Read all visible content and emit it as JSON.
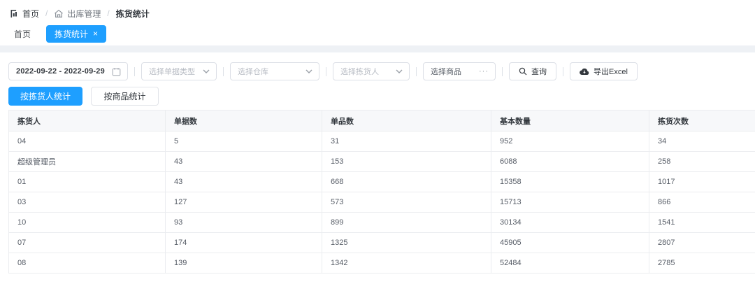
{
  "breadcrumb": {
    "separator": "/",
    "items": [
      {
        "label": "首页"
      },
      {
        "label": "出库管理"
      },
      {
        "label": "拣货统计"
      }
    ]
  },
  "tabs": {
    "home": "首页",
    "active": "拣货统计",
    "close_glyph": "×"
  },
  "filters": {
    "date_range": "2022-09-22 - 2022-09-29",
    "selects": [
      {
        "placeholder": "选择单据类型"
      },
      {
        "placeholder": "选择仓库"
      },
      {
        "placeholder": "选择拣货人"
      },
      {
        "placeholder": "选择商品",
        "suffix": "···"
      }
    ],
    "search_label": "查询",
    "export_label": "导出Excel"
  },
  "view_toggle": {
    "by_picker": "按拣货人统计",
    "by_product": "按商品统计"
  },
  "table": {
    "columns": [
      "拣货人",
      "单据数",
      "单品数",
      "基本数量",
      "拣货次数"
    ],
    "rows": [
      [
        "04",
        "5",
        "31",
        "952",
        "34"
      ],
      [
        "超级管理员",
        "43",
        "153",
        "6088",
        "258"
      ],
      [
        "01",
        "43",
        "668",
        "15358",
        "1017"
      ],
      [
        "03",
        "127",
        "573",
        "15713",
        "866"
      ],
      [
        "10",
        "93",
        "899",
        "30134",
        "1541"
      ],
      [
        "07",
        "174",
        "1325",
        "45905",
        "2807"
      ],
      [
        "08",
        "139",
        "1342",
        "52484",
        "2785"
      ]
    ]
  },
  "colors": {
    "accent": "#1e9fff",
    "header_bg": "#f7f8fa",
    "border": "#ebedf0"
  }
}
